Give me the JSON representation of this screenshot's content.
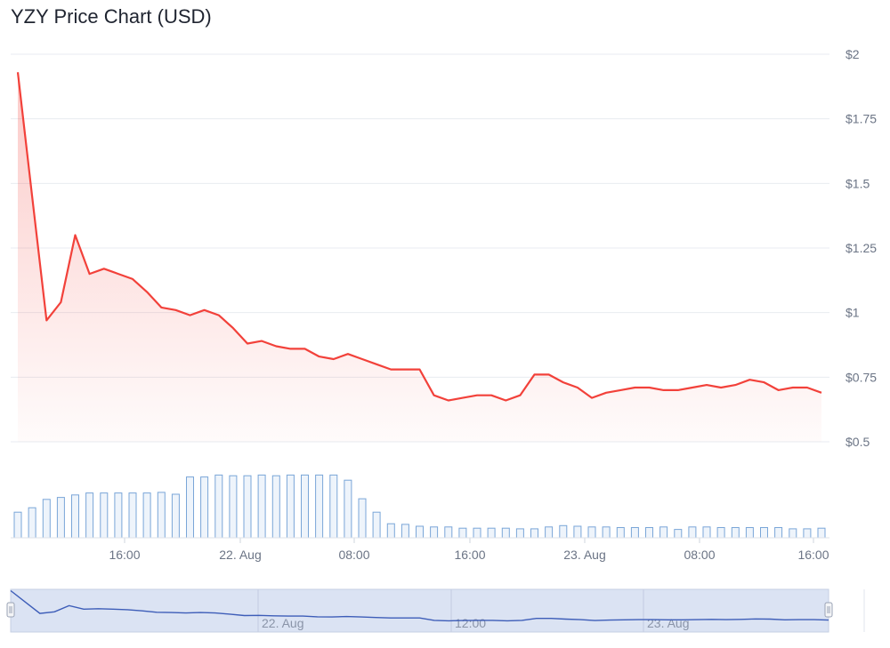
{
  "chart_data": {
    "type": "line",
    "title": "YZY Price Chart (USD)",
    "currency": "USD",
    "price_axis": {
      "ticks": [
        "$0.5",
        "$0.75",
        "$1",
        "$1.25",
        "$1.5",
        "$1.75",
        "$2"
      ],
      "values": [
        0.5,
        0.75,
        1,
        1.25,
        1.5,
        1.75,
        2
      ],
      "ylim": [
        0.5,
        2
      ]
    },
    "x_ticks": [
      "16:00",
      "22. Aug",
      "08:00",
      "16:00",
      "23. Aug",
      "08:00",
      "16:00"
    ],
    "price_series": {
      "color": "#f2413a",
      "values": [
        1.93,
        1.45,
        0.97,
        1.04,
        1.3,
        1.15,
        1.17,
        1.15,
        1.13,
        1.08,
        1.02,
        1.01,
        0.99,
        1.01,
        0.99,
        0.94,
        0.88,
        0.89,
        0.87,
        0.86,
        0.86,
        0.83,
        0.82,
        0.84,
        0.82,
        0.8,
        0.78,
        0.78,
        0.78,
        0.68,
        0.66,
        0.67,
        0.68,
        0.68,
        0.66,
        0.68,
        0.76,
        0.76,
        0.73,
        0.71,
        0.67,
        0.69,
        0.7,
        0.71,
        0.71,
        0.7,
        0.7,
        0.71,
        0.72,
        0.71,
        0.72,
        0.74,
        0.73,
        0.7,
        0.71,
        0.71,
        0.69
      ]
    },
    "volume_series": {
      "color": "#7aa6d8",
      "relative_values": [
        0.4,
        0.47,
        0.6,
        0.63,
        0.67,
        0.7,
        0.7,
        0.7,
        0.7,
        0.7,
        0.71,
        0.68,
        0.95,
        0.95,
        0.98,
        0.97,
        0.97,
        0.98,
        0.97,
        0.98,
        0.98,
        0.98,
        0.98,
        0.9,
        0.61,
        0.4,
        0.22,
        0.21,
        0.18,
        0.17,
        0.17,
        0.15,
        0.15,
        0.15,
        0.15,
        0.14,
        0.14,
        0.17,
        0.19,
        0.18,
        0.17,
        0.17,
        0.16,
        0.16,
        0.16,
        0.17,
        0.13,
        0.17,
        0.17,
        0.16,
        0.16,
        0.16,
        0.16,
        0.16,
        0.14,
        0.14,
        0.15
      ]
    },
    "navigator": {
      "ticks": [
        "22. Aug",
        "12:00",
        "23. Aug"
      ],
      "color": "#3d5db8"
    },
    "grid": true
  }
}
